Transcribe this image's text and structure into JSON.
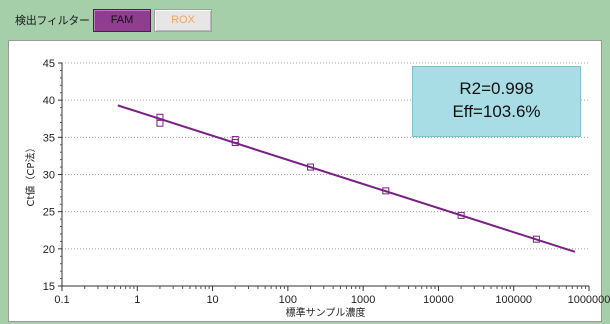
{
  "filter": {
    "label": "検出フィルター",
    "buttons": [
      {
        "id": "fam",
        "label": "FAM",
        "active": true
      },
      {
        "id": "rox",
        "label": "ROX",
        "active": false
      }
    ]
  },
  "stats": {
    "r2": "R2=0.998",
    "eff": "Eff=103.6%"
  },
  "colors": {
    "series": "#7a1f86",
    "background": "#a5cfa9",
    "stat_box": "#a8dde6",
    "fam_button": "#8f3d8f"
  },
  "chart_data": {
    "type": "scatter",
    "title": "",
    "xlabel": "標準サンプル濃度",
    "ylabel": "Ct値（CP法）",
    "xscale": "log",
    "xlim": [
      0.1,
      1000000
    ],
    "ylim": [
      15,
      45
    ],
    "xticks": [
      0.1,
      1,
      10,
      100,
      1000,
      10000,
      100000,
      1000000
    ],
    "xtick_labels": [
      "0.1",
      "1",
      "10",
      "100",
      "1000",
      "10000",
      "100000",
      "1000000"
    ],
    "yticks": [
      15,
      20,
      25,
      30,
      35,
      40,
      45
    ],
    "grid": "horizontal dotted",
    "legend": "none",
    "series": [
      {
        "marker": "square-open",
        "x": [
          2,
          2,
          20,
          20,
          200,
          2000,
          20000,
          200000
        ],
        "y": [
          37.7,
          36.9,
          34.7,
          34.3,
          31.0,
          27.8,
          24.5,
          21.3
        ]
      }
    ],
    "fit_line": {
      "x": [
        0.55,
        650000
      ],
      "y": [
        39.3,
        19.6
      ]
    }
  }
}
